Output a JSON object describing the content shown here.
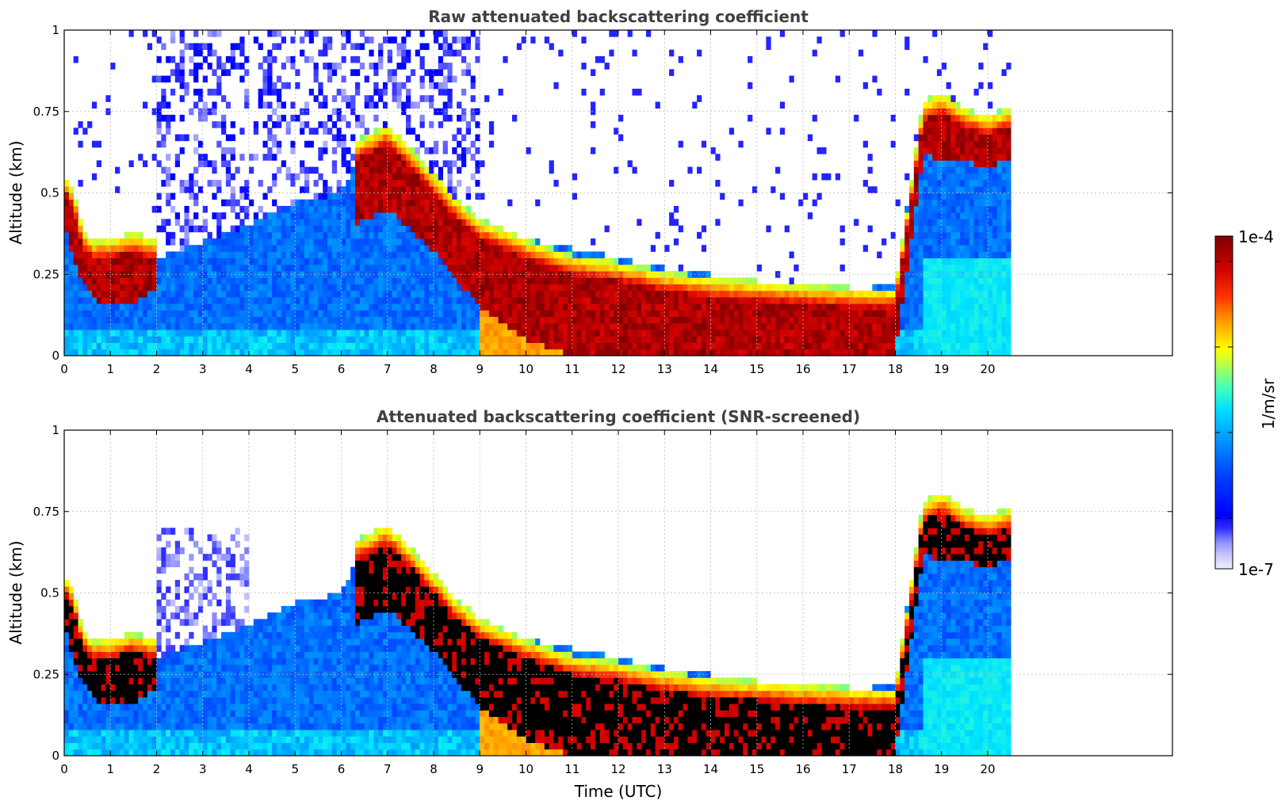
{
  "chart_data": [
    {
      "type": "heatmap",
      "title": "Raw attenuated backscattering coefficient",
      "xlabel": "",
      "ylabel": "Altitude (km)",
      "xlim": [
        0,
        24
      ],
      "ylim": [
        0,
        1
      ],
      "x_ticks": [
        "0",
        "1",
        "2",
        "3",
        "4",
        "5",
        "6",
        "7",
        "8",
        "9",
        "10",
        "11",
        "12",
        "13",
        "14",
        "15",
        "16",
        "17",
        "18",
        "19",
        "20"
      ],
      "y_ticks": [
        "0",
        "0.25",
        "0.5",
        "0.75",
        "1"
      ],
      "grid": true,
      "data_end_time": 20.45,
      "screened": false,
      "layers": {
        "boundary_top_km": [
          [
            0.0,
            0.55
          ],
          [
            0.2,
            0.5
          ],
          [
            0.4,
            0.38
          ],
          [
            0.6,
            0.3
          ],
          [
            1.0,
            0.28
          ],
          [
            1.5,
            0.3
          ],
          [
            1.9,
            0.3
          ],
          [
            2.0,
            0.3
          ],
          [
            3.0,
            0.35
          ],
          [
            4.0,
            0.4
          ],
          [
            5.0,
            0.47
          ],
          [
            6.0,
            0.5
          ],
          [
            6.3,
            0.6
          ],
          [
            7.0,
            0.68
          ],
          [
            7.5,
            0.6
          ],
          [
            8.0,
            0.52
          ],
          [
            8.5,
            0.45
          ],
          [
            9.0,
            0.4
          ],
          [
            10.0,
            0.36
          ],
          [
            11.0,
            0.33
          ],
          [
            12.0,
            0.3
          ],
          [
            13.0,
            0.27
          ],
          [
            14.0,
            0.25
          ],
          [
            15.0,
            0.23
          ],
          [
            16.0,
            0.22
          ],
          [
            17.0,
            0.2
          ],
          [
            18.0,
            0.22
          ],
          [
            18.3,
            0.5
          ],
          [
            18.6,
            0.75
          ],
          [
            19.0,
            0.78
          ],
          [
            19.5,
            0.72
          ],
          [
            20.0,
            0.7
          ],
          [
            20.45,
            0.72
          ]
        ],
        "dense_layer_top_km": [
          [
            0.0,
            0.5
          ],
          [
            0.2,
            0.45
          ],
          [
            0.4,
            0.33
          ],
          [
            0.6,
            0.3
          ],
          [
            1.0,
            0.3
          ],
          [
            1.5,
            0.32
          ],
          [
            1.9,
            0.3
          ],
          [
            6.3,
            0.6
          ],
          [
            7.0,
            0.65
          ],
          [
            7.5,
            0.58
          ],
          [
            8.0,
            0.5
          ],
          [
            8.5,
            0.42
          ],
          [
            9.0,
            0.36
          ],
          [
            10.0,
            0.3
          ],
          [
            11.0,
            0.25
          ],
          [
            12.0,
            0.23
          ],
          [
            13.0,
            0.2
          ],
          [
            14.0,
            0.18
          ],
          [
            15.0,
            0.17
          ],
          [
            16.0,
            0.16
          ],
          [
            17.0,
            0.15
          ],
          [
            18.0,
            0.15
          ],
          [
            18.6,
            0.72
          ],
          [
            19.0,
            0.75
          ],
          [
            19.5,
            0.7
          ],
          [
            20.0,
            0.68
          ],
          [
            20.45,
            0.7
          ]
        ],
        "dense_layer_bottom_km": [
          [
            0.0,
            0.4
          ],
          [
            0.3,
            0.25
          ],
          [
            0.6,
            0.18
          ],
          [
            1.0,
            0.15
          ],
          [
            1.5,
            0.16
          ],
          [
            1.9,
            0.2
          ],
          [
            6.3,
            0.4
          ],
          [
            7.0,
            0.45
          ],
          [
            8.0,
            0.32
          ],
          [
            9.0,
            0.15
          ],
          [
            10.0,
            0.05
          ],
          [
            11.0,
            0.0
          ],
          [
            18.0,
            0.0
          ],
          [
            18.6,
            0.62
          ],
          [
            19.0,
            0.6
          ],
          [
            19.5,
            0.6
          ],
          [
            20.0,
            0.58
          ],
          [
            20.45,
            0.6
          ]
        ]
      }
    },
    {
      "type": "heatmap",
      "title": "Attenuated backscattering coefficient (SNR-screened)",
      "xlabel": "Time (UTC)",
      "ylabel": "Altitude (km)",
      "xlim": [
        0,
        24
      ],
      "ylim": [
        0,
        1
      ],
      "x_ticks": [
        "0",
        "1",
        "2",
        "3",
        "4",
        "5",
        "6",
        "7",
        "8",
        "9",
        "10",
        "11",
        "12",
        "13",
        "14",
        "15",
        "16",
        "17",
        "18",
        "19",
        "20"
      ],
      "y_ticks": [
        "0",
        "0.25",
        "0.5",
        "0.75",
        "1"
      ],
      "grid": true,
      "data_end_time": 20.45,
      "screened": true
    }
  ],
  "colorbar": {
    "label": "1/m/sr",
    "max_label": "1e-4",
    "min_label": "1e-7",
    "scale": "log",
    "colormap": "jet-with-white-low"
  },
  "colors": {
    "saturated": "#000000",
    "title": "#404040",
    "grid": "#bbbbbb"
  }
}
